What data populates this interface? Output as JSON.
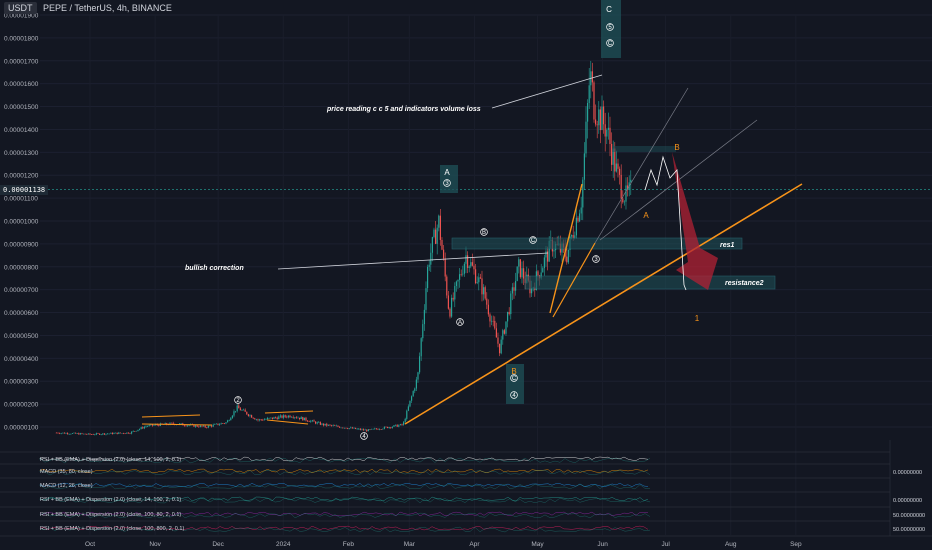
{
  "header": {
    "currency": "USDT",
    "title": "PEPE / TetherUS, 4h, BINANCE"
  },
  "colors": {
    "bg": "#131722",
    "up": "#26a69a",
    "down": "#ef5350",
    "wave": "#f7931a",
    "box": "#1e4d55",
    "red": "#b22234"
  },
  "price_tag": "0.00001138",
  "chart_data": {
    "type": "candlestick",
    "title": "PEPE / TetherUS, 4h, BINANCE",
    "y_ticks": [
      "0.00001900",
      "0.00001800",
      "0.00001700",
      "0.00001600",
      "0.00001500",
      "0.00001400",
      "0.00001300",
      "0.00001200",
      "0.00001100",
      "0.00001000",
      "0.00000900",
      "0.00000800",
      "0.00000700",
      "0.00000600",
      "0.00000500",
      "0.00000400",
      "0.00000300",
      "0.00000200",
      "0.00000100"
    ],
    "x_ticks": [
      "Oct",
      "Nov",
      "Dec",
      "2024",
      "Feb",
      "Mar",
      "Apr",
      "May",
      "Jun",
      "Jul",
      "Aug",
      "Sep"
    ],
    "price_path": [
      [
        "2023-09-15",
        7.5e-07
      ],
      [
        "2023-10-01",
        6.8e-07
      ],
      [
        "2023-10-20",
        7.5e-07
      ],
      [
        "2023-10-28",
        1.05e-06
      ],
      [
        "2023-11-10",
        1.15e-06
      ],
      [
        "2023-11-25",
        1e-06
      ],
      [
        "2023-12-05",
        1.2e-06
      ],
      [
        "2023-12-10",
        1.85e-06
      ],
      [
        "2023-12-20",
        1.3e-06
      ],
      [
        "2024-01-05",
        1.5e-06
      ],
      [
        "2024-01-20",
        1.1e-06
      ],
      [
        "2024-02-10",
        8.5e-07
      ],
      [
        "2024-02-27",
        1.1e-06
      ],
      [
        "2024-03-05",
        3.2e-06
      ],
      [
        "2024-03-10",
        8.2e-06
      ],
      [
        "2024-03-15",
        1e-05
      ],
      [
        "2024-03-20",
        6e-06
      ],
      [
        "2024-03-28",
        8.5e-06
      ],
      [
        "2024-04-05",
        7e-06
      ],
      [
        "2024-04-13",
        4.4e-06
      ],
      [
        "2024-04-22",
        8e-06
      ],
      [
        "2024-04-28",
        7e-06
      ],
      [
        "2024-05-08",
        9e-06
      ],
      [
        "2024-05-15",
        8.5e-06
      ],
      [
        "2024-05-22",
        1.1e-05
      ],
      [
        "2024-05-26",
        1.65e-05
      ],
      [
        "2024-05-28",
        1.5e-05
      ],
      [
        "2024-06-03",
        1.4e-05
      ],
      [
        "2024-06-08",
        1.2e-05
      ],
      [
        "2024-06-12",
        1.1e-05
      ],
      [
        "2024-06-15",
        1.138e-05
      ]
    ],
    "annotations": [
      {
        "text": "price reading c c 5 and indicators volume loss"
      },
      {
        "text": "bullish correction"
      },
      {
        "text": "res1"
      },
      {
        "text": "resistance2"
      }
    ],
    "wave_labels": [
      "C",
      "5",
      "C",
      "A",
      "3",
      "B",
      "C",
      "4",
      "A",
      "B",
      "A",
      "B",
      "C",
      "1",
      "2",
      "4",
      "3"
    ],
    "indicators": [
      {
        "name": "RSI + BB (EMA) + Dispersion (2.0) (close, 14, 100, 2, 0.1)"
      },
      {
        "name": "MACD (35, 80, close)",
        "value": "0.00000000"
      },
      {
        "name": "MACD (12, 26, close)"
      },
      {
        "name": "RSI + BB (EMA) + Dispersion (2.0) (close, 14, 100, 2, 0.1)",
        "value": "0.00000000"
      },
      {
        "name": "RSI + BB (EMA) + Dispersion (2.0) (close, 100, 80, 2, 0.1)",
        "value": "50.00000000"
      },
      {
        "name": "RSI + BB (EMA) + Dispersion (2.0) (close, 100, 800, 2, 0.1)",
        "value": "50.00000000"
      }
    ],
    "ylim": [
      5e-07,
      1.95e-05
    ]
  }
}
